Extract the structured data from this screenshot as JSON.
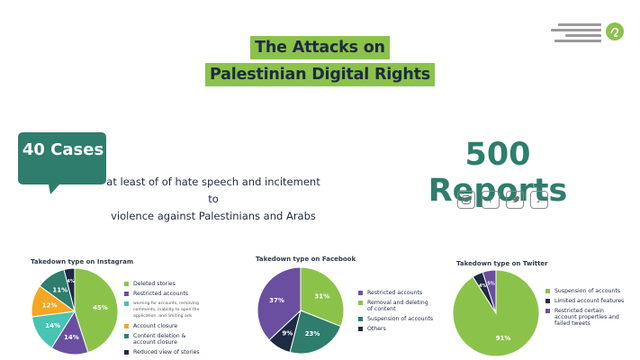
{
  "header": {
    "title_line1": "The Attacks on",
    "title_line2": "Palestinian Digital Rights",
    "logo_lines": [
      "",
      "",
      "",
      ""
    ]
  },
  "cases": {
    "label": "40 Cases",
    "description_line1": "at least of of hate speech and incitement to",
    "description_line2": "violence against Palestinians and Arabs",
    "bubble_color": "#2e7d6d"
  },
  "reports": {
    "label": "500 Reports",
    "platform_icons": [
      "instagram-icon",
      "facebook-icon",
      "twitter-icon",
      "tiktok-icon"
    ]
  },
  "chart_data": [
    {
      "type": "pie",
      "title": "Takedown type on Instagram",
      "slices": [
        {
          "label": "Deleted stories",
          "value": 45,
          "display": "45%",
          "color": "#8bc34a"
        },
        {
          "label": "Restricted accounts",
          "value": 14,
          "display": "14%",
          "color": "#6a4fa0"
        },
        {
          "label": "warning for accounts, removing comments, inability to open the application, and limiting ads",
          "value": 14,
          "display": "14%",
          "color": "#47c4b4"
        },
        {
          "label": "Account closure",
          "value": 12,
          "display": "12%",
          "color": "#f5a623"
        },
        {
          "label": "Content deletion & account closure",
          "value": 11,
          "display": "11%",
          "color": "#2e7d6d"
        },
        {
          "label": "Reduced view of stories",
          "value": 4,
          "display": "4%",
          "color": "#1f2a44"
        }
      ]
    },
    {
      "type": "pie",
      "title": "Takedown type on Facebook",
      "slices": [
        {
          "label": "Restricted accounts",
          "value": 37,
          "display": "37%",
          "color": "#6a4fa0"
        },
        {
          "label": "Removal and deleting of content",
          "value": 31,
          "display": "31%",
          "color": "#8bc34a"
        },
        {
          "label": "Suspension of accounts",
          "value": 23,
          "display": "23%",
          "color": "#2e7d6d"
        },
        {
          "label": "Others",
          "value": 9,
          "display": "9%",
          "color": "#1f2a44"
        }
      ]
    },
    {
      "type": "pie",
      "title": "Takedown type on Twitter",
      "slices": [
        {
          "label": "Suspension of accounts",
          "value": 91,
          "display": "91%",
          "color": "#8bc34a"
        },
        {
          "label": "Limited account features",
          "value": 4,
          "display": "4%",
          "color": "#1f2a44"
        },
        {
          "label": "Restricted certain account properties and failed tweets",
          "value": 5,
          "display": "5%",
          "color": "#6a4fa0"
        }
      ]
    }
  ]
}
